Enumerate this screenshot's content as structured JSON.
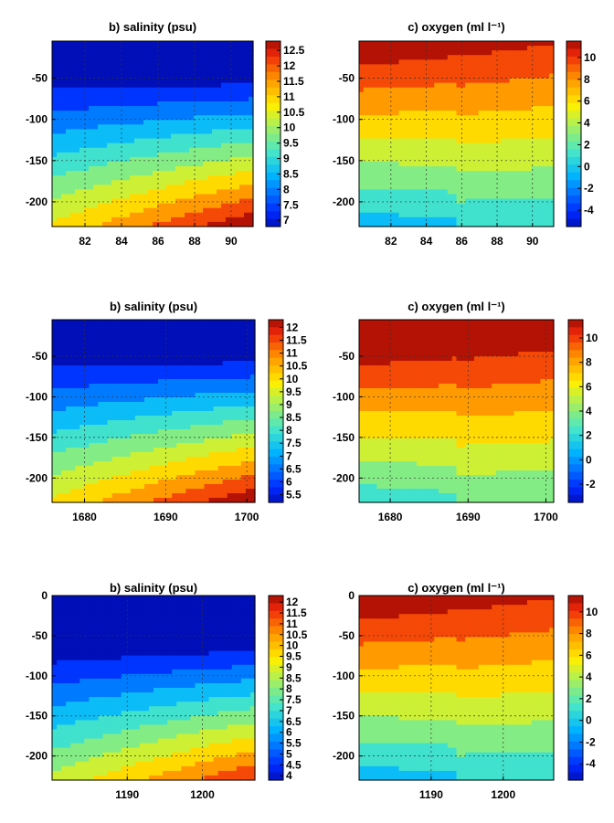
{
  "chart_data": [
    {
      "id": "r1-sal",
      "type": "heatmap",
      "variable": "salinity",
      "title": "b) salinity (psu)",
      "x_ticks": [
        "82",
        "84",
        "86",
        "88",
        "90"
      ],
      "x_tick_values": [
        82,
        84,
        86,
        88,
        90
      ],
      "xlim": [
        80.2,
        91.2
      ],
      "y_ticks": [
        "-50",
        "-100",
        "-150",
        "-200"
      ],
      "y_tick_values": [
        -50,
        -100,
        -150,
        -200
      ],
      "ylim": [
        -230,
        -5
      ],
      "colorbar": {
        "labels": [
          "12.5",
          "12",
          "11.5",
          "11",
          "10.5",
          "10",
          "9.5",
          "9",
          "8.5",
          "8",
          "7.5",
          "7"
        ],
        "range": [
          6.8,
          12.8
        ]
      },
      "grid": true
    },
    {
      "id": "r1-oxy",
      "type": "heatmap",
      "variable": "oxygen",
      "title": "c) oxygen (ml l⁻¹)",
      "x_ticks": [
        "82",
        "84",
        "86",
        "88",
        "90"
      ],
      "x_tick_values": [
        82,
        84,
        86,
        88,
        90
      ],
      "xlim": [
        80.2,
        91.2
      ],
      "y_ticks": [
        "-50",
        "-100",
        "-150",
        "-200"
      ],
      "y_tick_values": [
        -50,
        -100,
        -150,
        -200
      ],
      "ylim": [
        -230,
        -5
      ],
      "colorbar": {
        "labels": [
          "10",
          "8",
          "6",
          "4",
          "2",
          "0",
          "-2",
          "-4"
        ],
        "range": [
          -5.5,
          11.5
        ]
      },
      "grid": true
    },
    {
      "id": "r2-sal",
      "type": "heatmap",
      "variable": "salinity",
      "title": "b) salinity (psu)",
      "x_ticks": [
        "1680",
        "1690",
        "1700"
      ],
      "x_tick_values": [
        1680,
        1690,
        1700
      ],
      "xlim": [
        1676,
        1701
      ],
      "y_ticks": [
        "-50",
        "-100",
        "-150",
        "-200"
      ],
      "y_tick_values": [
        -50,
        -100,
        -150,
        -200
      ],
      "ylim": [
        -230,
        -5
      ],
      "colorbar": {
        "labels": [
          "12",
          "11.5",
          "11",
          "10.5",
          "10",
          "9.5",
          "9",
          "8.5",
          "8",
          "7.5",
          "7",
          "6.5",
          "6",
          "5.5"
        ],
        "range": [
          5.2,
          12.3
        ]
      },
      "grid": true
    },
    {
      "id": "r2-oxy",
      "type": "heatmap",
      "variable": "oxygen",
      "title": "c) oxygen (ml l⁻¹)",
      "x_ticks": [
        "1680",
        "1690",
        "1700"
      ],
      "x_tick_values": [
        1680,
        1690,
        1700
      ],
      "xlim": [
        1676,
        1701
      ],
      "y_ticks": [
        "-50",
        "-100",
        "-150",
        "-200"
      ],
      "y_tick_values": [
        -50,
        -100,
        -150,
        -200
      ],
      "ylim": [
        -230,
        -5
      ],
      "colorbar": {
        "labels": [
          "10",
          "8",
          "6",
          "4",
          "2",
          "0",
          "-2"
        ],
        "range": [
          -3.5,
          11.5
        ]
      },
      "grid": true
    },
    {
      "id": "r3-sal",
      "type": "heatmap",
      "variable": "salinity",
      "title": "b) salinity (psu)",
      "x_ticks": [
        "1190",
        "1200"
      ],
      "x_tick_values": [
        1190,
        1200
      ],
      "xlim": [
        1180,
        1207
      ],
      "y_ticks": [
        "0",
        "-50",
        "-100",
        "-150",
        "-200"
      ],
      "y_tick_values": [
        0,
        -50,
        -100,
        -150,
        -200
      ],
      "ylim": [
        -230,
        0
      ],
      "colorbar": {
        "labels": [
          "12",
          "11.5",
          "11",
          "10.5",
          "10",
          "9.5",
          "9",
          "8.5",
          "8",
          "7.5",
          "7",
          "6.5",
          "6",
          "5.5",
          "5",
          "4.5",
          "4"
        ],
        "range": [
          3.8,
          12.3
        ]
      },
      "grid": true
    },
    {
      "id": "r3-oxy",
      "type": "heatmap",
      "variable": "oxygen",
      "title": "c) oxygen (ml l⁻¹)",
      "x_ticks": [
        "1190",
        "1200"
      ],
      "x_tick_values": [
        1190,
        1200
      ],
      "xlim": [
        1180,
        1207
      ],
      "y_ticks": [
        "0",
        "-50",
        "-100",
        "-150",
        "-200"
      ],
      "y_tick_values": [
        0,
        -50,
        -100,
        -150,
        -200
      ],
      "ylim": [
        -230,
        0
      ],
      "colorbar": {
        "labels": [
          "10",
          "8",
          "6",
          "4",
          "2",
          "0",
          "-2",
          "-4"
        ],
        "range": [
          -5.5,
          11.5
        ]
      },
      "grid": true
    }
  ]
}
